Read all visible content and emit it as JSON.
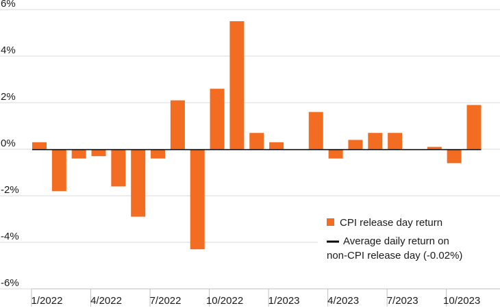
{
  "chart_data": {
    "type": "bar",
    "x": [
      "1/2022",
      "2/2022",
      "3/2022",
      "4/2022",
      "5/2022",
      "6/2022",
      "7/2022",
      "8/2022",
      "9/2022",
      "10/2022",
      "11/2022",
      "12/2022",
      "1/2023",
      "2/2023",
      "3/2023",
      "4/2023",
      "5/2023",
      "6/2023",
      "7/2023",
      "8/2023",
      "9/2023",
      "10/2023",
      "11/2023"
    ],
    "x_tick_labels": [
      "1/2022",
      "4/2022",
      "7/2022",
      "10/2022",
      "1/2023",
      "4/2023",
      "7/2023",
      "10/2023"
    ],
    "series": [
      {
        "name": "CPI release day return",
        "values": [
          0.3,
          -1.8,
          -0.4,
          -0.3,
          -1.6,
          -2.9,
          -0.4,
          2.1,
          -4.3,
          2.6,
          5.5,
          0.7,
          0.3,
          0.0,
          1.6,
          -0.4,
          0.4,
          0.7,
          0.7,
          0.0,
          0.1,
          -0.6,
          1.9
        ],
        "color": "#f26c22"
      }
    ],
    "reference_line": {
      "name": "Average daily return on non-CPI release day (-0.02%)",
      "value": -0.02,
      "color": "#000000"
    },
    "ylim": [
      -6,
      6
    ],
    "y_ticks": [
      -6,
      -4,
      -2,
      0,
      2,
      4,
      6
    ],
    "y_tick_suffix": "%",
    "grid": "horizontal",
    "legend_position": "bottom-right",
    "legend": {
      "bar_label": "CPI release day return",
      "line_label_1": "Average daily return on",
      "line_label_2": "non-CPI release day (-0.02%)"
    }
  }
}
